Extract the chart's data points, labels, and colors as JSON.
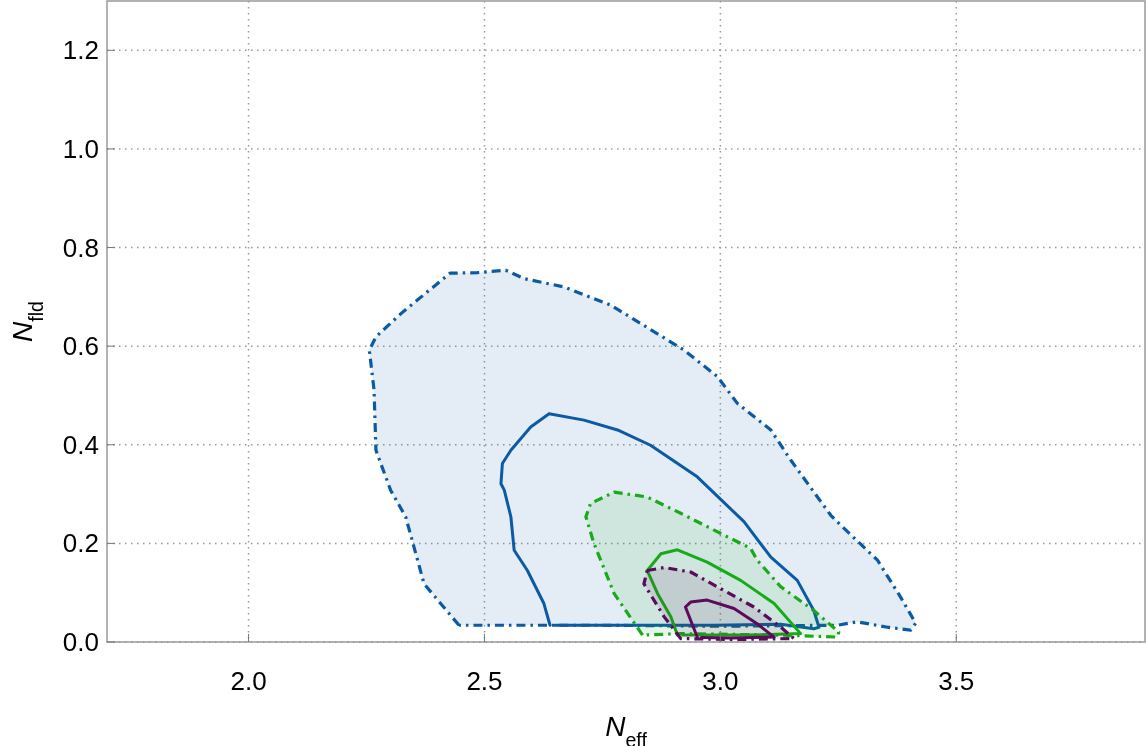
{
  "chart_data": {
    "type": "line",
    "xlabel": "N$_{eff}$",
    "ylabel": "N$_{fld}$",
    "xlim": [
      1.7,
      3.9
    ],
    "ylim": [
      0,
      1.3
    ],
    "xticks": [
      {
        "value": 2,
        "label": "2.0"
      },
      2.5,
      {
        "value": 3,
        "label": "3.0"
      },
      3.5
    ],
    "yticks": [
      {
        "value": 0,
        "label": "0.0"
      },
      0.2,
      0.4,
      0.6,
      0.8,
      {
        "value": 1,
        "label": "1.0"
      },
      1.2
    ],
    "grid": true,
    "series": [
      {
        "type": "area",
        "color": "#0a5aa5",
        "line_style": "dashed",
        "x": [
          2.446,
          2.372,
          2.333,
          2.301,
          2.27,
          2.266,
          2.256,
          2.27,
          2.323,
          2.427,
          2.485,
          2.545,
          2.584,
          2.669,
          2.768,
          2.923,
          2.994,
          3.036,
          3.107,
          3.149,
          3.234,
          3.255,
          3.333,
          3.382,
          3.414,
          3.403,
          3.354,
          3.29,
          3.248,
          3.0,
          2.746,
          2.446
        ],
        "values": [
          0.034,
          0.118,
          0.254,
          0.308,
          0.389,
          0.511,
          0.592,
          0.619,
          0.666,
          0.748,
          0.749,
          0.754,
          0.737,
          0.72,
          0.683,
          0.592,
          0.538,
          0.484,
          0.43,
          0.369,
          0.257,
          0.237,
          0.166,
          0.091,
          0.038,
          0.024,
          0.03,
          0.041,
          0.034,
          0.032,
          0.034,
          0.034
        ]
      },
      {
        "color": "#0a5aa5",
        "line_style": "solid",
        "x": [
          2.639,
          2.626,
          2.591,
          2.563,
          2.556,
          2.542,
          2.535,
          2.538,
          2.556,
          2.598,
          2.637,
          2.711,
          2.782,
          2.852,
          2.951,
          3.05,
          3.107,
          3.163,
          3.198,
          3.209,
          3.198,
          3.128,
          2.986,
          2.65
        ],
        "values": [
          0.034,
          0.078,
          0.145,
          0.186,
          0.254,
          0.308,
          0.321,
          0.362,
          0.389,
          0.436,
          0.463,
          0.45,
          0.43,
          0.399,
          0.335,
          0.244,
          0.172,
          0.125,
          0.064,
          0.03,
          0.027,
          0.036,
          0.034,
          0.034
        ]
      },
      {
        "type": "area",
        "color": "#18aa18",
        "line_style": "dashed",
        "x": [
          2.835,
          2.775,
          2.732,
          2.715,
          2.725,
          2.775,
          2.845,
          2.916,
          3.001,
          3.064,
          3.078,
          3.128,
          3.198,
          3.251,
          3.248,
          3.128,
          2.916,
          2.835
        ],
        "values": [
          0.014,
          0.098,
          0.2,
          0.254,
          0.281,
          0.304,
          0.294,
          0.261,
          0.22,
          0.19,
          0.166,
          0.112,
          0.064,
          0.02,
          0.01,
          0.014,
          0.017,
          0.014
        ]
      },
      {
        "color": "#18aa18",
        "line_style": "solid",
        "x": [
          2.909,
          2.895,
          2.867,
          2.845,
          2.874,
          2.909,
          2.972,
          3.043,
          3.114,
          3.17,
          3.057,
          2.92
        ],
        "values": [
          0.014,
          0.051,
          0.098,
          0.145,
          0.179,
          0.187,
          0.162,
          0.125,
          0.078,
          0.017,
          0.014,
          0.014
        ]
      },
      {
        "type": "area",
        "color": "#5c0a5c",
        "line_style": "dashed",
        "x": [
          2.845,
          2.881,
          2.937,
          3.001,
          3.071,
          3.128,
          3.156,
          3.022,
          2.916,
          2.881,
          2.838,
          2.845
        ],
        "values": [
          0.145,
          0.151,
          0.142,
          0.108,
          0.071,
          0.03,
          0.007,
          0.005,
          0.007,
          0.051,
          0.118,
          0.145
        ]
      },
      {
        "color": "#5c0a5c",
        "line_style": "solid",
        "x": [
          2.951,
          2.937,
          2.926,
          2.937,
          2.972,
          3.029,
          3.078,
          3.114,
          3.022,
          2.96
        ],
        "values": [
          0.01,
          0.044,
          0.071,
          0.081,
          0.085,
          0.068,
          0.037,
          0.01,
          0.008,
          0.009
        ]
      }
    ]
  }
}
